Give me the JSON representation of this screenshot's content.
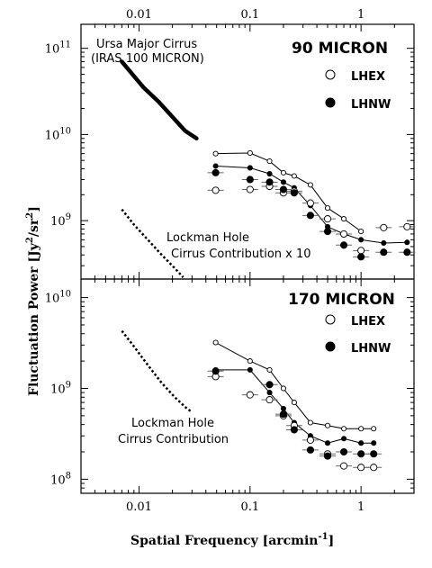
{
  "chart_data": {
    "type": "scatter",
    "xlabel": "Spatial Frequency [arcmin",
    "xlabel_exp": "-1",
    "xlabel_close": "]",
    "ylabel": "Fluctuation Power [Jy",
    "ylabel_mid": "/sr",
    "ylabel_close": "]",
    "x_scale": "log",
    "x_range": [
      0.003,
      3.0
    ],
    "top_axis_ticks": [
      {
        "value": 0.01,
        "label": "0.01"
      },
      {
        "value": 0.1,
        "label": "0.1"
      },
      {
        "value": 1,
        "label": "1"
      }
    ],
    "bottom_axis_ticks": [
      {
        "value": 0.01,
        "label": "0.01"
      },
      {
        "value": 0.1,
        "label": "0.1"
      },
      {
        "value": 1,
        "label": "1"
      }
    ],
    "panels": [
      {
        "title": "90 MICRON",
        "y_scale": "log",
        "y_range": [
          210000000,
          190000000000
        ],
        "y_ticks": [
          {
            "value": 1000000000,
            "base": "10",
            "exp": "9"
          },
          {
            "value": 10000000000,
            "base": "10",
            "exp": "10"
          },
          {
            "value": 100000000000,
            "base": "10",
            "exp": "11"
          }
        ],
        "legend": [
          {
            "label": "LHEX",
            "marker": "open-circle"
          },
          {
            "label": "LHNW",
            "marker": "filled-circle"
          }
        ],
        "cirrus_curve": {
          "style": "thick-solid",
          "annotation": [
            "Ursa Major Cirrus",
            "(IRAS 100 MICRON)"
          ],
          "points": [
            [
              0.007,
              70000000000
            ],
            [
              0.0085,
              52000000000
            ],
            [
              0.011,
              35000000000
            ],
            [
              0.015,
              24000000000
            ],
            [
              0.02,
              16000000000
            ],
            [
              0.026,
              11000000000
            ],
            [
              0.033,
              9000000000
            ]
          ]
        },
        "contribution_curve": {
          "style": "dotted",
          "annotation": [
            "Lockman Hole",
            "Cirrus Contribution x 10"
          ],
          "points": [
            [
              0.007,
              1350000000
            ],
            [
              0.009,
              900000000
            ],
            [
              0.012,
              600000000
            ],
            [
              0.016,
              400000000
            ],
            [
              0.021,
              280000000
            ],
            [
              0.025,
              220000000
            ]
          ]
        },
        "series": [
          {
            "name": "LHEX",
            "marker": "open-circle",
            "connected": true,
            "x": [
              0.049,
              0.1,
              0.15,
              0.2,
              0.25,
              0.35,
              0.5,
              0.7,
              1.0
            ],
            "y": [
              6000000000,
              6100000000,
              4900000000,
              3600000000,
              3300000000,
              2600000000,
              1400000000,
              1050000000,
              750000000
            ]
          },
          {
            "name": "LHNW",
            "marker": "filled-circle",
            "connected": true,
            "x": [
              0.049,
              0.1,
              0.15,
              0.2,
              0.25,
              0.35,
              0.5,
              0.7,
              1.0,
              1.6,
              2.6
            ],
            "y": [
              4300000000,
              4100000000,
              3500000000,
              2800000000,
              2400000000,
              1500000000,
              850000000,
              700000000,
              600000000,
              550000000,
              560000000
            ]
          },
          {
            "name": "LHEX",
            "marker": "open-circle",
            "connected": false,
            "x": [
              0.049,
              0.1,
              0.15,
              0.2,
              0.25,
              0.35,
              0.5,
              0.7,
              1.0,
              1.6,
              2.6
            ],
            "y": [
              2250000000,
              2300000000,
              2500000000,
              2100000000,
              2200000000,
              1600000000,
              1050000000,
              700000000,
              450000000,
              830000000,
              850000000
            ]
          },
          {
            "name": "LHNW",
            "marker": "filled-circle",
            "connected": false,
            "x": [
              0.049,
              0.1,
              0.15,
              0.2,
              0.25,
              0.35,
              0.5,
              0.7,
              1.0,
              1.6,
              2.6
            ],
            "y": [
              3600000000,
              3000000000,
              2800000000,
              2300000000,
              2100000000,
              1150000000,
              750000000,
              520000000,
              380000000,
              430000000,
              430000000
            ]
          }
        ]
      },
      {
        "title": "170 MICRON",
        "y_scale": "log",
        "y_range": [
          70000000,
          16000000000
        ],
        "y_ticks": [
          {
            "value": 100000000,
            "base": "10",
            "exp": "8"
          },
          {
            "value": 1000000000,
            "base": "10",
            "exp": "9"
          },
          {
            "value": 10000000000,
            "base": "10",
            "exp": "10"
          }
        ],
        "legend": [
          {
            "label": "LHEX",
            "marker": "open-circle"
          },
          {
            "label": "LHNW",
            "marker": "filled-circle"
          }
        ],
        "contribution_curve": {
          "style": "dotted",
          "annotation": [
            "Lockman Hole",
            "Cirrus Contribution"
          ],
          "points": [
            [
              0.007,
              4300000000
            ],
            [
              0.009,
              2900000000
            ],
            [
              0.012,
              1800000000
            ],
            [
              0.016,
              1150000000
            ],
            [
              0.021,
              800000000
            ],
            [
              0.027,
              600000000
            ],
            [
              0.03,
              550000000
            ]
          ]
        },
        "series": [
          {
            "name": "LHEX",
            "marker": "open-circle",
            "connected": true,
            "x": [
              0.049,
              0.1,
              0.15,
              0.2,
              0.25,
              0.35,
              0.5,
              0.7,
              1.0,
              1.3
            ],
            "y": [
              3200000000,
              2000000000,
              1600000000,
              1000000000,
              700000000,
              420000000,
              390000000,
              360000000,
              360000000,
              360000000
            ]
          },
          {
            "name": "LHNW",
            "marker": "filled-circle",
            "connected": true,
            "x": [
              0.049,
              0.1,
              0.15,
              0.2,
              0.25,
              0.35,
              0.5,
              0.7,
              1.0,
              1.3
            ],
            "y": [
              1600000000,
              1600000000,
              900000000,
              600000000,
              420000000,
              300000000,
              250000000,
              280000000,
              250000000,
              250000000
            ]
          },
          {
            "name": "LHEX",
            "marker": "open-circle",
            "connected": false,
            "x": [
              0.049,
              0.1,
              0.15,
              0.2,
              0.25,
              0.35,
              0.5,
              0.7,
              1.0,
              1.3
            ],
            "y": [
              1350000000,
              850000000,
              750000000,
              500000000,
              390000000,
              270000000,
              190000000,
              140000000,
              135000000,
              135000000
            ]
          },
          {
            "name": "LHNW",
            "marker": "filled-circle",
            "connected": false,
            "x": [
              0.049,
              0.15,
              0.2,
              0.25,
              0.35,
              0.5,
              0.7,
              1.0,
              1.3
            ],
            "y": [
              1550000000,
              1100000000,
              520000000,
              350000000,
              210000000,
              180000000,
              200000000,
              190000000,
              190000000
            ]
          }
        ]
      }
    ]
  }
}
